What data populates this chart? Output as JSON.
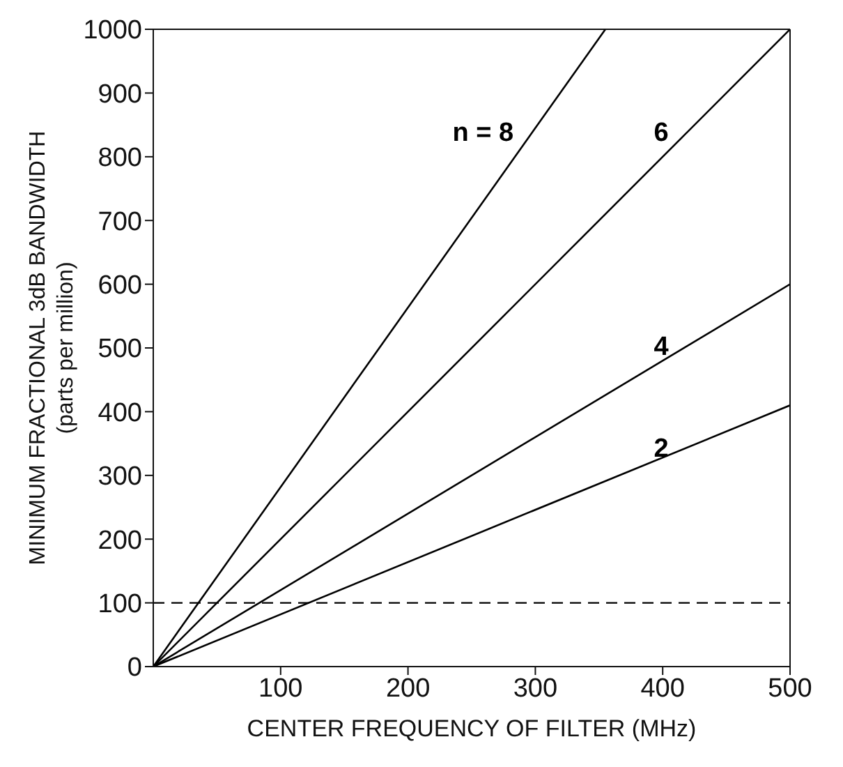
{
  "chart_data": {
    "type": "line",
    "xlabel": "CENTER FREQUENCY OF FILTER (MHz)",
    "ylabel": "MINIMUM FRACTIONAL 3dB BANDWIDTH\n(parts per million)",
    "series": [
      {
        "name": "n = 8",
        "color": "#000000",
        "x": [
          0,
          355
        ],
        "values": [
          0,
          1000
        ]
      },
      {
        "name": "6",
        "color": "#000000",
        "x": [
          0,
          500
        ],
        "values": [
          0,
          1000
        ]
      },
      {
        "name": "4",
        "color": "#000000",
        "x": [
          0,
          500
        ],
        "values": [
          0,
          600
        ]
      },
      {
        "name": "2",
        "color": "#000000",
        "x": [
          0,
          500
        ],
        "values": [
          0,
          410
        ]
      }
    ],
    "xlim": [
      0,
      500
    ],
    "xticks": [
      100,
      200,
      300,
      400,
      500
    ],
    "ylim": [
      0,
      1000
    ],
    "yticks": [
      0,
      100,
      200,
      300,
      400,
      500,
      600,
      700,
      800,
      900,
      1000
    ],
    "ref_lines": [
      {
        "axis": "y",
        "value": 100,
        "line_style": "dashed",
        "color": "#000000"
      }
    ],
    "legend": false,
    "marker": "none",
    "line_style": "solid"
  }
}
